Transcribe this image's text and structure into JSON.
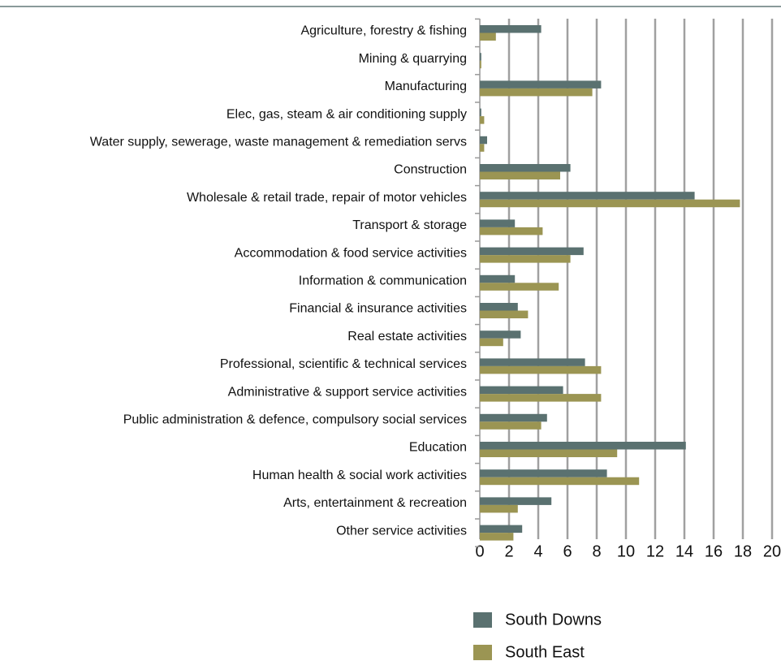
{
  "chart_data": {
    "type": "bar",
    "orientation": "horizontal",
    "categories": [
      "Agriculture, forestry & fishing",
      "Mining & quarrying",
      "Manufacturing",
      "Elec, gas, steam & air conditioning supply",
      "Water supply, sewerage, waste management & remediation servs",
      "Construction",
      "Wholesale & retail trade, repair of motor vehicles",
      "Transport & storage",
      "Accommodation & food service activities",
      "Information & communication",
      "Financial & insurance activities",
      "Real estate activities",
      "Professional, scientific & technical services",
      "Administrative & support service activities",
      "Public administration & defence, compulsory social services",
      "Education",
      "Human health & social work activities",
      "Arts, entertainment & recreation",
      "Other service activities"
    ],
    "series": [
      {
        "name": "South Downs",
        "color": "#5a7170",
        "values": [
          4.2,
          0.1,
          8.3,
          0.1,
          0.5,
          6.2,
          14.7,
          2.4,
          7.1,
          2.4,
          2.6,
          2.8,
          7.2,
          5.7,
          4.6,
          14.1,
          8.7,
          4.9,
          2.9
        ]
      },
      {
        "name": "South East",
        "color": "#9b9553",
        "values": [
          1.1,
          0.1,
          7.7,
          0.3,
          0.3,
          5.5,
          17.8,
          4.3,
          6.2,
          5.4,
          3.3,
          1.6,
          8.3,
          8.3,
          4.2,
          9.4,
          10.9,
          2.6,
          2.3
        ]
      }
    ],
    "xlim": [
      0,
      20
    ],
    "xticks": [
      0,
      2,
      4,
      6,
      8,
      10,
      12,
      14,
      16,
      18,
      20
    ],
    "grid": true,
    "legend": "bottom"
  }
}
